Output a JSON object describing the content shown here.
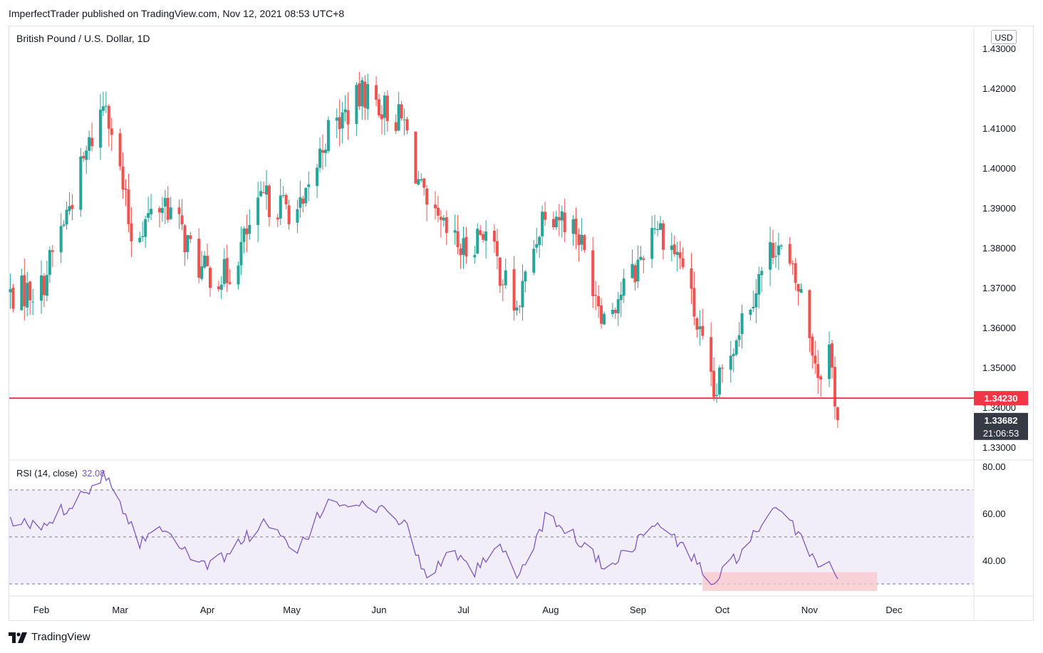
{
  "header": {
    "published_by": "ImperfectTrader published on TradingView.com, Nov 12, 2021 08:53 UTC+8",
    "symbol_title": "British Pound / U.S. Dollar, 1D",
    "currency": "USD",
    "footer_logo_text": "TradingView"
  },
  "colors": {
    "up": "#26a69a",
    "down": "#ef5350",
    "rsi_line": "#7e57c2",
    "rsi_band": "#ede7f6",
    "horizontal_line": "#f23645",
    "rsi_highlight": "#f8c9cc",
    "price_badge": "#363a45"
  },
  "chart_data": [
    {
      "type": "candlestick",
      "title": "British Pound / U.S. Dollar, 1D",
      "ylim": [
        1.326,
        1.437
      ],
      "y_ticks": [
        "1.43000",
        "1.42000",
        "1.41000",
        "1.40000",
        "1.39000",
        "1.38000",
        "1.37000",
        "1.36000",
        "1.35000",
        "1.34000",
        "1.33000"
      ],
      "x_ticks": [
        "Feb",
        "Mar",
        "Apr",
        "May",
        "Jun",
        "Jul",
        "Aug",
        "Sep",
        "Oct",
        "Nov",
        "Dec"
      ],
      "levels": {
        "horizontal_line": "1.34230",
        "last_price": "1.33682",
        "countdown": "21:06:53"
      },
      "key_points": [
        {
          "date": "2021-01-20",
          "close": 1.368
        },
        {
          "date": "2021-02-01",
          "close": 1.37
        },
        {
          "date": "2021-02-24",
          "close": 1.418
        },
        {
          "date": "2021-03-05",
          "close": 1.383
        },
        {
          "date": "2021-03-17",
          "close": 1.392
        },
        {
          "date": "2021-03-30",
          "close": 1.374
        },
        {
          "date": "2021-04-08",
          "close": 1.373
        },
        {
          "date": "2021-04-21",
          "close": 1.392
        },
        {
          "date": "2021-05-05",
          "close": 1.389
        },
        {
          "date": "2021-05-13",
          "close": 1.408
        },
        {
          "date": "2021-05-27",
          "close": 1.419
        },
        {
          "date": "2021-06-10",
          "close": 1.411
        },
        {
          "date": "2021-06-18",
          "close": 1.388
        },
        {
          "date": "2021-07-01",
          "close": 1.379
        },
        {
          "date": "2021-07-08",
          "close": 1.385
        },
        {
          "date": "2021-07-20",
          "close": 1.364
        },
        {
          "date": "2021-07-30",
          "close": 1.391
        },
        {
          "date": "2021-08-10",
          "close": 1.385
        },
        {
          "date": "2021-08-20",
          "close": 1.363
        },
        {
          "date": "2021-08-31",
          "close": 1.374
        },
        {
          "date": "2021-09-07",
          "close": 1.387
        },
        {
          "date": "2021-09-17",
          "close": 1.376
        },
        {
          "date": "2021-09-28",
          "close": 1.342
        },
        {
          "date": "2021-10-07",
          "close": 1.361
        },
        {
          "date": "2021-10-20",
          "close": 1.382
        },
        {
          "date": "2021-10-29",
          "close": 1.368
        },
        {
          "date": "2021-11-04",
          "close": 1.349
        },
        {
          "date": "2021-11-08",
          "close": 1.355
        },
        {
          "date": "2021-11-11",
          "close": 1.3368
        }
      ]
    },
    {
      "type": "line",
      "title": "RSI (14, close)",
      "current_value": "32.08",
      "ylim": [
        25,
        80
      ],
      "y_ticks": [
        "80.00",
        "60.00",
        "40.00"
      ],
      "bands": [
        30,
        50,
        70
      ],
      "key_points": [
        {
          "date": "2021-01-20",
          "value": 57
        },
        {
          "date": "2021-02-01",
          "value": 54
        },
        {
          "date": "2021-02-12",
          "value": 65
        },
        {
          "date": "2021-02-24",
          "value": 77
        },
        {
          "date": "2021-03-08",
          "value": 48
        },
        {
          "date": "2021-03-17",
          "value": 55
        },
        {
          "date": "2021-03-30",
          "value": 37
        },
        {
          "date": "2021-04-08",
          "value": 43
        },
        {
          "date": "2021-04-21",
          "value": 56
        },
        {
          "date": "2021-05-03",
          "value": 43
        },
        {
          "date": "2021-05-14",
          "value": 66
        },
        {
          "date": "2021-05-28",
          "value": 63
        },
        {
          "date": "2021-06-10",
          "value": 57
        },
        {
          "date": "2021-06-18",
          "value": 31
        },
        {
          "date": "2021-06-25",
          "value": 44
        },
        {
          "date": "2021-07-05",
          "value": 35
        },
        {
          "date": "2021-07-14",
          "value": 45
        },
        {
          "date": "2021-07-21",
          "value": 33
        },
        {
          "date": "2021-07-30",
          "value": 58
        },
        {
          "date": "2021-08-10",
          "value": 50
        },
        {
          "date": "2021-08-20",
          "value": 37
        },
        {
          "date": "2021-08-31",
          "value": 47
        },
        {
          "date": "2021-09-07",
          "value": 56
        },
        {
          "date": "2021-09-17",
          "value": 46
        },
        {
          "date": "2021-09-28",
          "value": 30
        },
        {
          "date": "2021-10-07",
          "value": 43
        },
        {
          "date": "2021-10-20",
          "value": 61
        },
        {
          "date": "2021-10-29",
          "value": 51
        },
        {
          "date": "2021-11-04",
          "value": 37
        },
        {
          "date": "2021-11-08",
          "value": 41
        },
        {
          "date": "2021-11-11",
          "value": 32.08
        }
      ],
      "highlight": {
        "from": "2021-09-24",
        "to": "2021-11-25",
        "y_from": 27,
        "y_to": 35
      }
    }
  ]
}
